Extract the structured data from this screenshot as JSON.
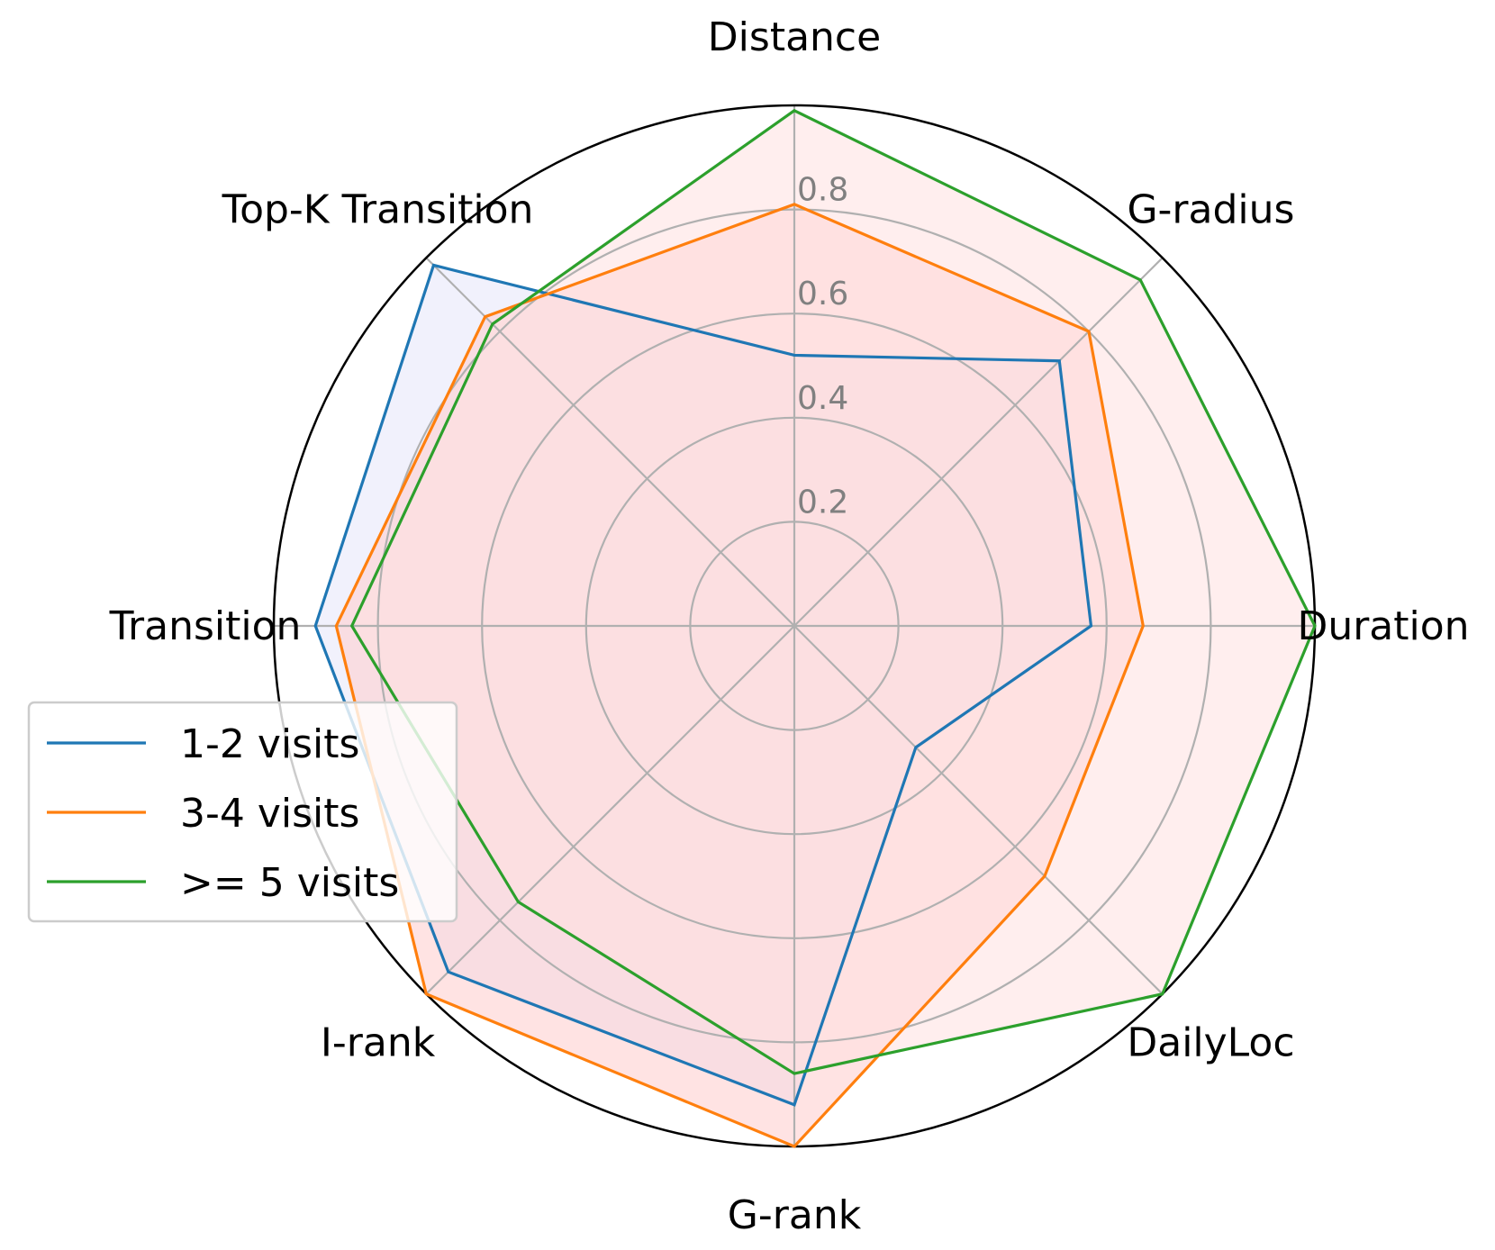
{
  "chart_data": {
    "type": "radar",
    "axes": [
      "Distance",
      "G-radius",
      "Duration",
      "DailyLoc",
      "G-rank",
      "I-rank",
      "Transition",
      "Top-K Transition"
    ],
    "rlim": [
      0,
      1
    ],
    "radial_ticks": [
      0.2,
      0.4,
      0.6,
      0.8
    ],
    "radial_tick_labels": [
      "0.2",
      "0.4",
      "0.6",
      "0.8"
    ],
    "grid": true,
    "legend_position": "lower-left",
    "series": [
      {
        "name": "1-2 visits",
        "color": "#1f77b4",
        "fill": "#e6e6fa",
        "values": [
          0.52,
          0.72,
          0.57,
          0.33,
          0.92,
          0.94,
          0.92,
          0.98
        ]
      },
      {
        "name": "3-4 visits",
        "color": "#ff7f0e",
        "fill": "#ffcccc",
        "values": [
          0.81,
          0.8,
          0.67,
          0.68,
          1.0,
          1.0,
          0.88,
          0.84
        ]
      },
      {
        "name": ">= 5 visits",
        "color": "#2ca02c",
        "fill": "#ffe0e0",
        "values": [
          0.99,
          0.94,
          1.0,
          1.0,
          0.86,
          0.75,
          0.85,
          0.82
        ]
      }
    ]
  }
}
